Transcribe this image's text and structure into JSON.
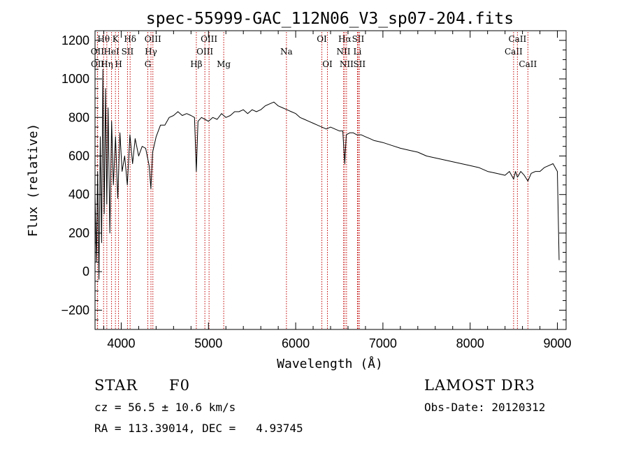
{
  "chart_data": {
    "type": "line",
    "title": "spec-55999-GAC_112N06_V3_sp07-204.fits",
    "xlabel": "Wavelength (Å)",
    "ylabel": "Flux (relative)",
    "xlim": [
      3700,
      9100
    ],
    "ylim": [
      -300,
      1250
    ],
    "xticks": [
      4000,
      5000,
      6000,
      7000,
      8000,
      9000
    ],
    "yticks": [
      -200,
      0,
      200,
      400,
      600,
      800,
      1000,
      1200
    ],
    "series": [
      {
        "name": "flux",
        "x": [
          3700,
          3715,
          3730,
          3745,
          3760,
          3775,
          3790,
          3805,
          3820,
          3835,
          3850,
          3870,
          3890,
          3910,
          3935,
          3960,
          3985,
          4010,
          4040,
          4070,
          4100,
          4130,
          4160,
          4200,
          4240,
          4280,
          4320,
          4340,
          4360,
          4400,
          4450,
          4500,
          4550,
          4600,
          4650,
          4700,
          4750,
          4800,
          4840,
          4861,
          4880,
          4920,
          4960,
          5000,
          5050,
          5100,
          5150,
          5200,
          5250,
          5300,
          5350,
          5400,
          5450,
          5500,
          5550,
          5600,
          5650,
          5700,
          5750,
          5800,
          5850,
          5900,
          5950,
          6000,
          6050,
          6100,
          6150,
          6200,
          6250,
          6300,
          6350,
          6400,
          6450,
          6500,
          6540,
          6563,
          6580,
          6620,
          6660,
          6700,
          6750,
          6800,
          6850,
          6900,
          6950,
          7000,
          7100,
          7200,
          7300,
          7400,
          7500,
          7600,
          7700,
          7800,
          7900,
          8000,
          8100,
          8200,
          8300,
          8400,
          8450,
          8498,
          8520,
          8542,
          8580,
          8620,
          8662,
          8700,
          8750,
          8800,
          8850,
          8900,
          8950,
          9000,
          9010,
          9020
        ],
        "values": [
          400,
          50,
          520,
          -40,
          700,
          150,
          1050,
          300,
          950,
          350,
          850,
          200,
          780,
          450,
          700,
          380,
          720,
          520,
          600,
          450,
          710,
          560,
          690,
          600,
          650,
          640,
          550,
          430,
          620,
          700,
          760,
          760,
          800,
          810,
          830,
          810,
          820,
          810,
          800,
          520,
          780,
          800,
          790,
          780,
          800,
          790,
          820,
          800,
          810,
          830,
          830,
          840,
          820,
          840,
          830,
          840,
          860,
          870,
          880,
          860,
          850,
          840,
          830,
          820,
          800,
          790,
          780,
          770,
          760,
          750,
          740,
          750,
          740,
          730,
          730,
          560,
          710,
          720,
          720,
          710,
          710,
          700,
          690,
          680,
          675,
          670,
          655,
          640,
          630,
          620,
          600,
          590,
          580,
          570,
          560,
          550,
          540,
          520,
          510,
          500,
          520,
          480,
          520,
          490,
          520,
          500,
          470,
          510,
          520,
          520,
          540,
          550,
          560,
          520,
          280,
          60
        ]
      }
    ],
    "lines": [
      {
        "label": "Hθ",
        "x": 3798,
        "row": 0
      },
      {
        "label": "OII",
        "x": 3727,
        "row": 1
      },
      {
        "label": "OII",
        "x": 3729,
        "row": 2
      },
      {
        "label": "Hη",
        "x": 3835,
        "row": 2
      },
      {
        "label": "HeI",
        "x": 3889,
        "row": 1
      },
      {
        "label": "K",
        "x": 3934,
        "row": 0
      },
      {
        "label": "H",
        "x": 3969,
        "row": 2
      },
      {
        "label": "SII",
        "x": 4072,
        "row": 1
      },
      {
        "label": "Hδ",
        "x": 4102,
        "row": 0
      },
      {
        "label": "G",
        "x": 4305,
        "row": 2
      },
      {
        "label": "Hγ",
        "x": 4341,
        "row": 1
      },
      {
        "label": "OIII",
        "x": 4363,
        "row": 0
      },
      {
        "label": "Hβ",
        "x": 4861,
        "row": 2
      },
      {
        "label": "OIII",
        "x": 4959,
        "row": 1
      },
      {
        "label": "OIII",
        "x": 5007,
        "row": 0
      },
      {
        "label": "Mg",
        "x": 5175,
        "row": 2
      },
      {
        "label": "Na",
        "x": 5894,
        "row": 1
      },
      {
        "label": "OI",
        "x": 6300,
        "row": 0
      },
      {
        "label": "OI",
        "x": 6364,
        "row": 2
      },
      {
        "label": "NII",
        "x": 6548,
        "row": 1
      },
      {
        "label": "Hα",
        "x": 6563,
        "row": 0
      },
      {
        "label": "NII",
        "x": 6583,
        "row": 2
      },
      {
        "label": "SII",
        "x": 6716,
        "row": 0
      },
      {
        "label": "Li",
        "x": 6708,
        "row": 1
      },
      {
        "label": "SII",
        "x": 6731,
        "row": 2
      },
      {
        "label": "CaII",
        "x": 8498,
        "row": 1
      },
      {
        "label": "CaII",
        "x": 8542,
        "row": 0
      },
      {
        "label": "CaII",
        "x": 8662,
        "row": 2
      }
    ]
  },
  "info": {
    "class_label": "STAR",
    "subclass": "F0",
    "survey": "LAMOST DR3",
    "redshift": "cz = 56.5 ± 10.6 km/s",
    "obs_date": "Obs-Date: 20120312",
    "coords": "RA = 113.39014, DEC =   4.93745"
  }
}
